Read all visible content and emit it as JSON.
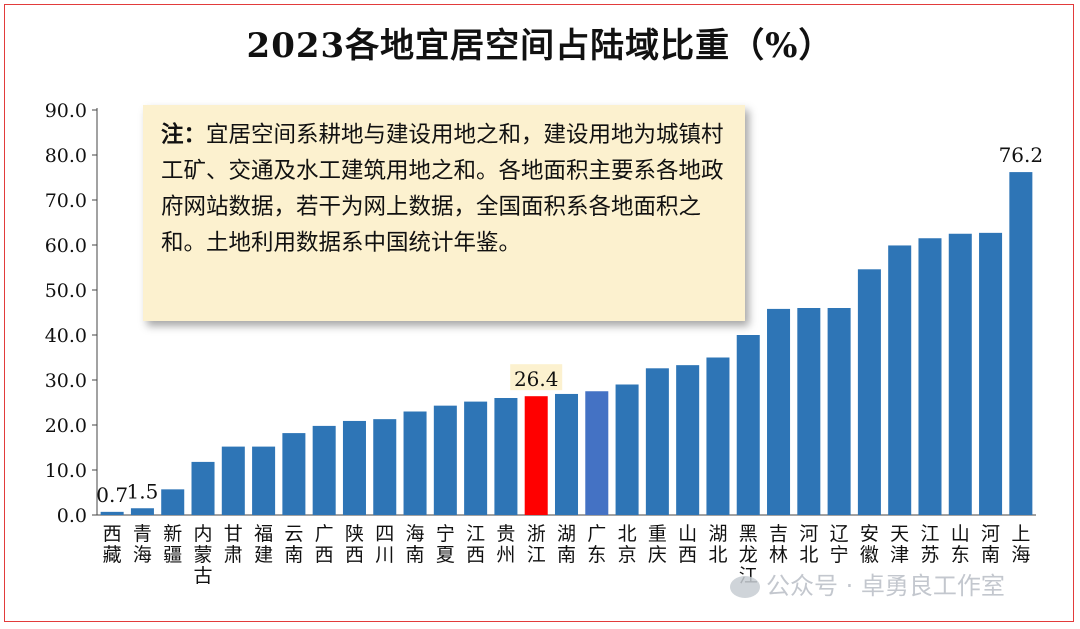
{
  "chart_data": {
    "type": "bar",
    "title": "2023各地宜居空间占陆域比重（%）",
    "categories": [
      "西藏",
      "青海",
      "新疆",
      "内蒙古",
      "甘肃",
      "福建",
      "云南",
      "广西",
      "陕西",
      "四川",
      "海南",
      "宁夏",
      "江西",
      "贵州",
      "浙江",
      "湖南",
      "广东",
      "北京",
      "重庆",
      "山西",
      "湖北",
      "黑龙江",
      "吉林",
      "河北",
      "辽宁",
      "安徽",
      "天津",
      "江苏",
      "山东",
      "河南",
      "上海"
    ],
    "values": [
      0.7,
      1.5,
      5.7,
      11.8,
      15.2,
      15.2,
      18.2,
      19.8,
      20.9,
      21.3,
      23.0,
      24.3,
      25.2,
      26.0,
      26.4,
      26.9,
      27.5,
      29.0,
      32.6,
      33.3,
      35.0,
      40.0,
      45.8,
      46.0,
      46.0,
      54.6,
      59.9,
      61.5,
      62.5,
      62.7,
      76.2
    ],
    "bar_labels": {
      "0": "0.7",
      "1": "1.5",
      "14": "26.4",
      "30": "76.2"
    },
    "highlight": {
      "14": "#ff0000",
      "16": "#4472c4"
    },
    "bar_color": "#2e75b6",
    "ylim": [
      0,
      90
    ],
    "yticks": [
      "0.0",
      "10.0",
      "20.0",
      "30.0",
      "40.0",
      "50.0",
      "60.0",
      "70.0",
      "80.0",
      "90.0"
    ],
    "xlabel": "",
    "ylabel": "",
    "grid": false,
    "legend": "none"
  },
  "note": {
    "label": "注：",
    "text": "宜居空间系耕地与建设用地之和，建设用地为城镇村工矿、交通及水工建筑用地之和。各地面积主要系各地政府网站数据，若干为网上数据，全国面积系各地面积之和。土地利用数据系中国统计年鉴。"
  },
  "watermark": "公众号 · 卓勇良工作室"
}
